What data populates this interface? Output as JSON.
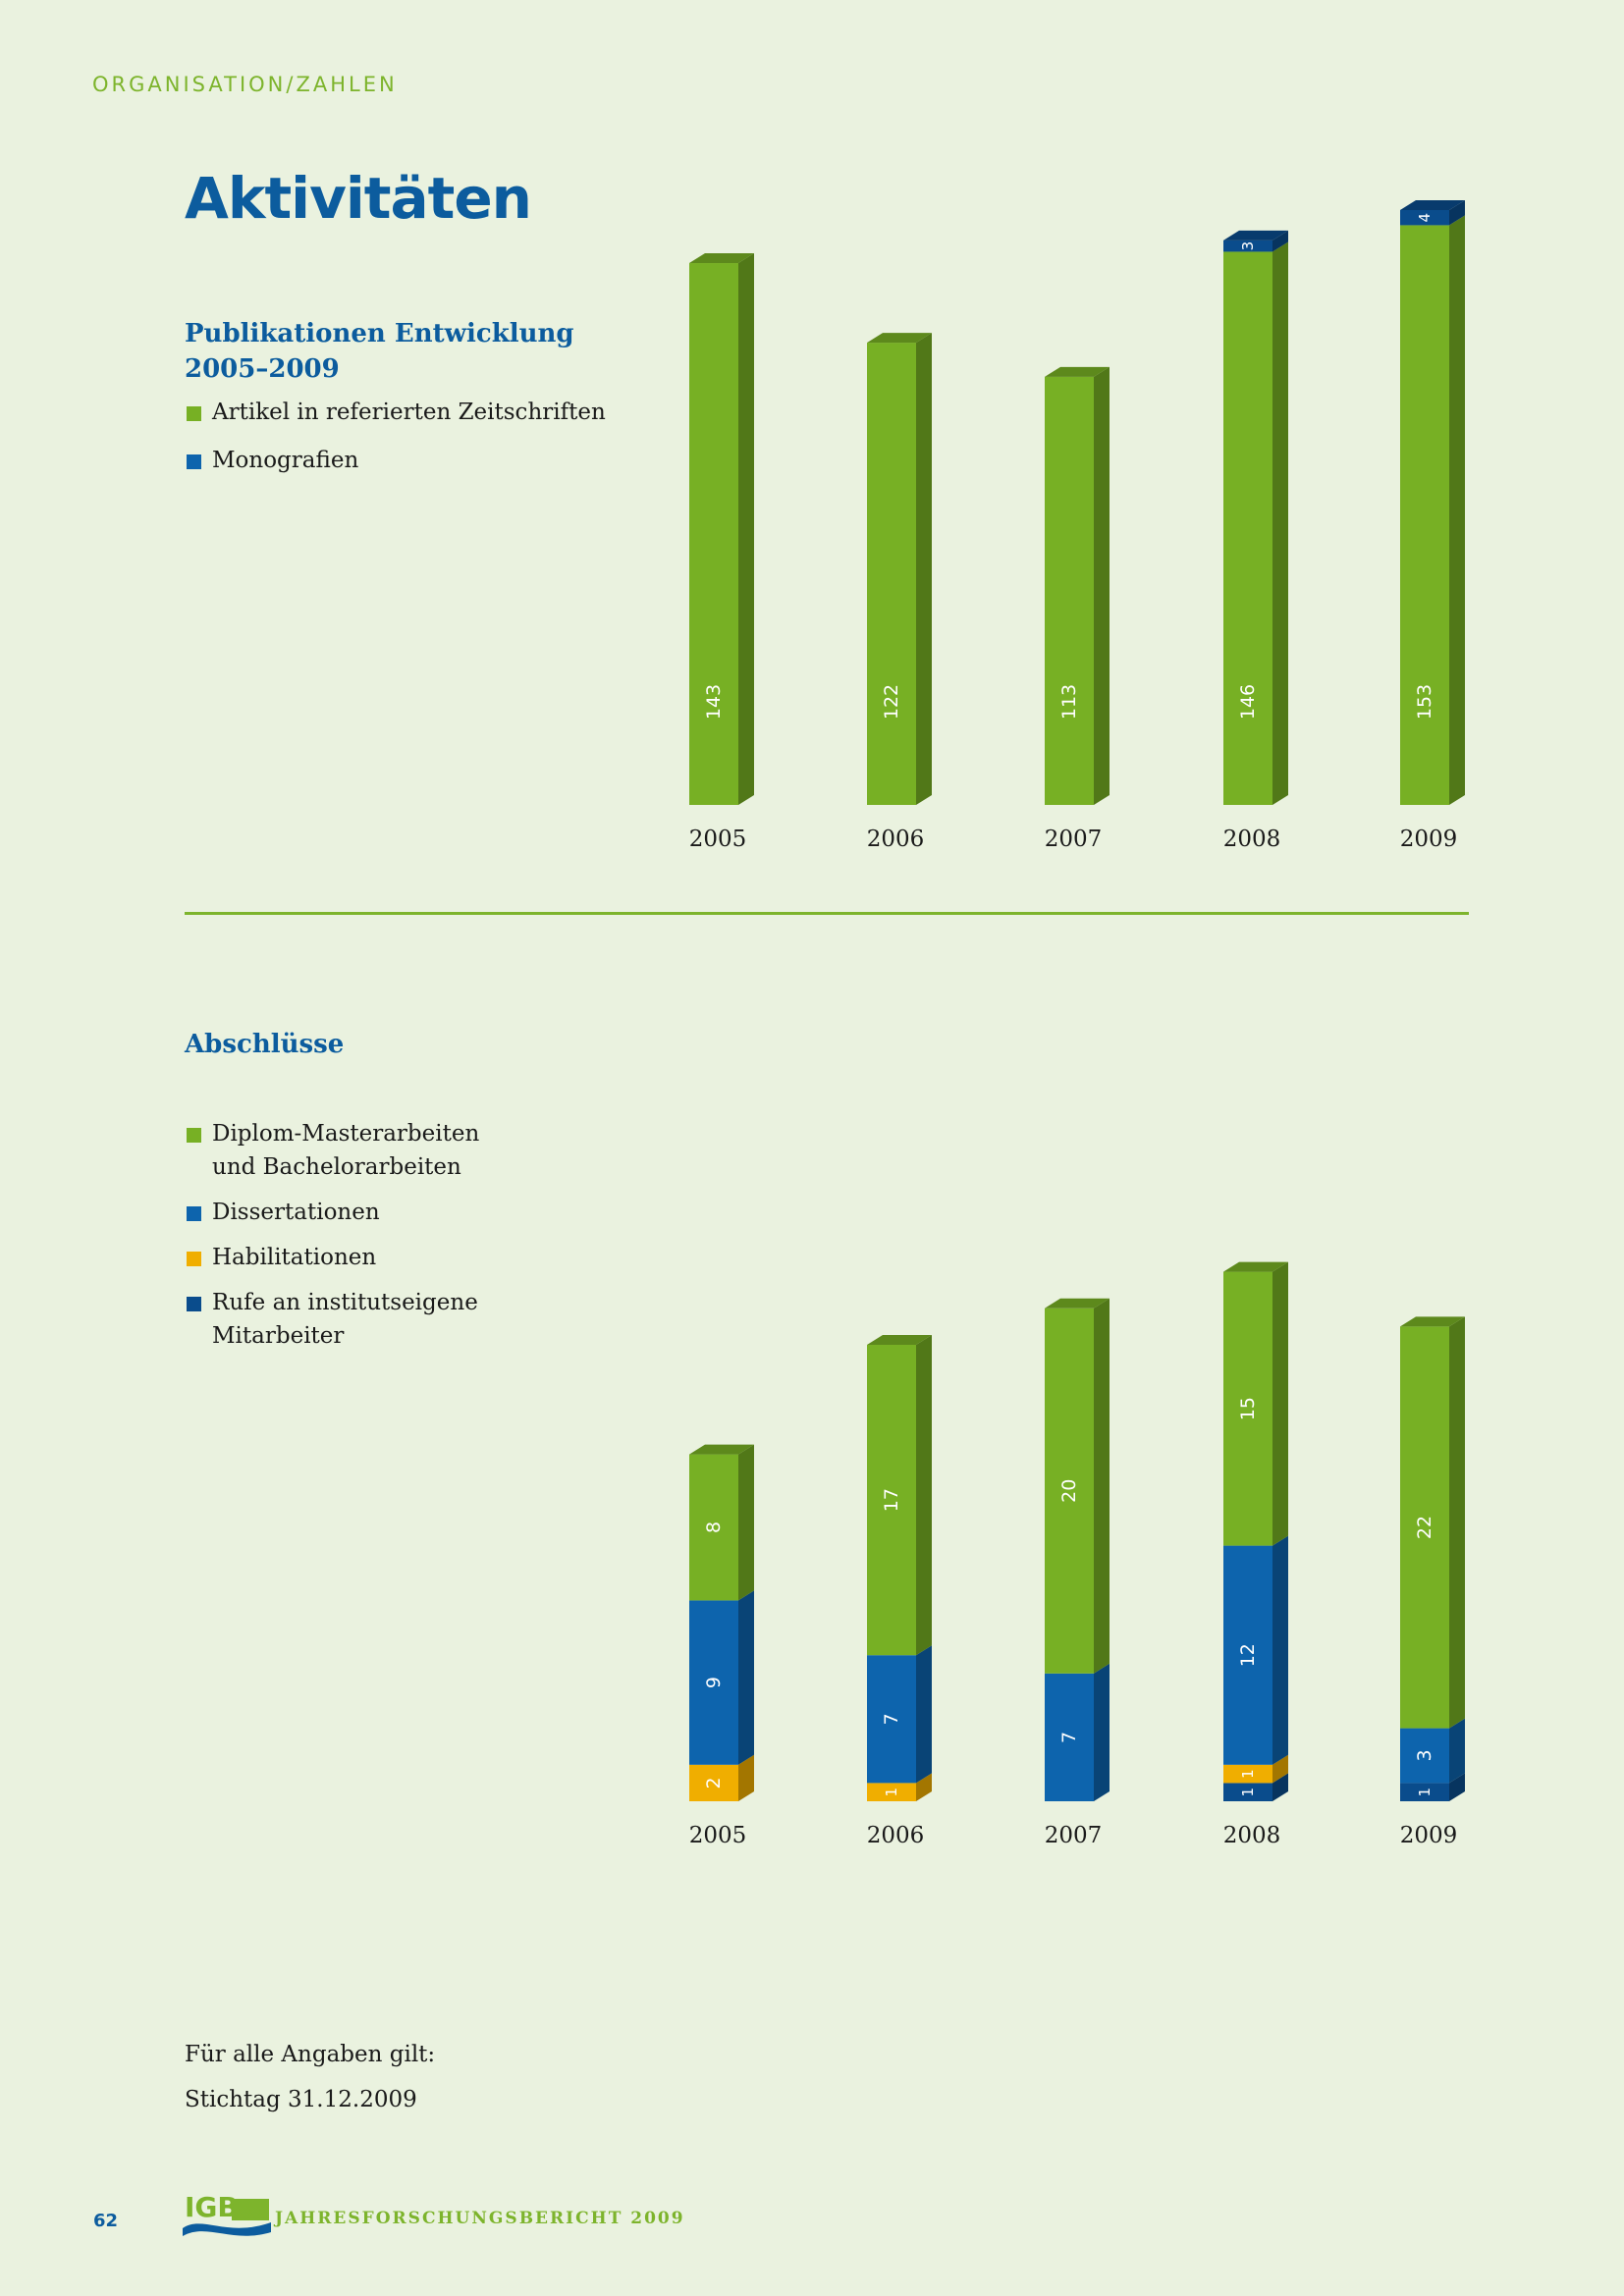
{
  "header": {
    "section_label": "ORGANISATION/ZAHLEN",
    "title": "Aktivitäten"
  },
  "colors": {
    "green": "#77b024",
    "blue": "#0d64ad",
    "yellow": "#f0ae00",
    "darkblue": "#0a4c8c",
    "background": "#eaf2df"
  },
  "publications": {
    "heading_line1": "Publikationen Entwicklung",
    "heading_line2": "2005–2009",
    "legend": [
      {
        "label": "Artikel in referierten Zeitschriften",
        "color": "#77b024"
      },
      {
        "label": "Monografien",
        "color": "#0d64ad"
      }
    ]
  },
  "degrees": {
    "heading": "Abschlüsse",
    "legend": [
      {
        "label_line1": "Diplom-Masterarbeiten",
        "label_line2": "und Bachelorarbeiten",
        "color": "#77b024"
      },
      {
        "label_line1": "Dissertationen",
        "label_line2": "",
        "color": "#0d64ad"
      },
      {
        "label_line1": "Habilitationen",
        "label_line2": "",
        "color": "#f0ae00"
      },
      {
        "label_line1": "Rufe an institutseigene",
        "label_line2": "Mitarbeiter",
        "color": "#0a4c8c"
      }
    ]
  },
  "chart_data": [
    {
      "type": "bar",
      "stacked": true,
      "title": "Publikationen Entwicklung 2005–2009",
      "categories": [
        "2005",
        "2006",
        "2007",
        "2008",
        "2009"
      ],
      "series": [
        {
          "name": "Artikel in referierten Zeitschriften",
          "values": [
            143,
            122,
            113,
            146,
            153
          ],
          "color": "#77b024"
        },
        {
          "name": "Monografien",
          "values": [
            0,
            0,
            0,
            3,
            4
          ],
          "color": "#0a4c8c"
        }
      ],
      "ylim": [
        0,
        160
      ],
      "grid": false,
      "legend": "left"
    },
    {
      "type": "bar",
      "stacked": true,
      "title": "Abschlüsse",
      "categories": [
        "2005",
        "2006",
        "2007",
        "2008",
        "2009"
      ],
      "series": [
        {
          "name": "Rufe an institutseigene Mitarbeiter",
          "values": [
            0,
            0,
            0,
            1,
            1
          ],
          "color": "#0a4c8c"
        },
        {
          "name": "Habilitationen",
          "values": [
            2,
            1,
            0,
            1,
            0
          ],
          "color": "#f0ae00"
        },
        {
          "name": "Dissertationen",
          "values": [
            9,
            7,
            7,
            12,
            3
          ],
          "color": "#0d64ad"
        },
        {
          "name": "Diplom-Masterarbeiten und Bachelorarbeiten",
          "values": [
            8,
            17,
            20,
            15,
            22
          ],
          "color": "#77b024"
        }
      ],
      "ylim": [
        0,
        30
      ],
      "grid": false,
      "legend": "left"
    }
  ],
  "notes": {
    "line1": "Für alle Angaben gilt:",
    "line2": "Stichtag 31.12.2009"
  },
  "footer": {
    "page_number": "62",
    "logo_text": "IGB",
    "report_title": "JAHRESFORSCHUNGSBERICHT 2009"
  }
}
